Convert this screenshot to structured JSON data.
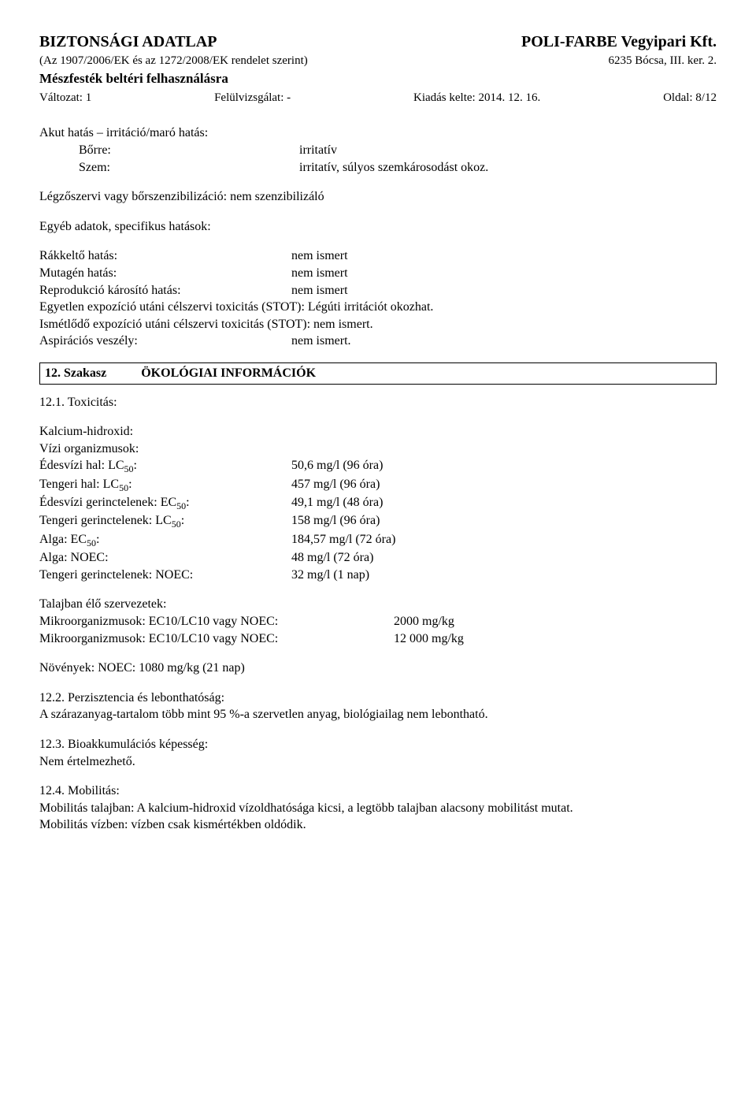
{
  "header": {
    "docTitle": "BIZTONSÁGI ADATLAP",
    "company": "POLI-FARBE Vegyipari Kft.",
    "regulation": "(Az 1907/2006/EK és az 1272/2008/EK rendelet szerint)",
    "address": "6235 Bócsa, III. ker. 2.",
    "product": "Mészfesték beltéri felhasználásra",
    "versionLabel": "Változat: 1",
    "revisionLabel": "Felülvizsgálat: -",
    "issueLabel": "Kiadás kelte: 2014. 12. 16.",
    "pageLabel": "Oldal: 8/12"
  },
  "acute": {
    "heading": "Akut hatás – irritáció/maró hatás:",
    "skinLabel": "Bőrre:",
    "skinVal": "irritatív",
    "eyeLabel": "Szem:",
    "eyeVal": "irritatív, súlyos szemkárosodást okoz."
  },
  "sens": "Légzőszervi vagy bőrszenzibilizáció:  nem szenzibilizáló",
  "other": {
    "heading": "Egyéb adatok, specifikus hatások:",
    "carcLabel": "Rákkeltő hatás:",
    "carcVal": "nem ismert",
    "mutLabel": "Mutagén hatás:",
    "mutVal": "nem ismert",
    "reproLabel": "Reprodukció károsító hatás:",
    "reproVal": "nem ismert",
    "stotSingle": "Egyetlen expozíció utáni célszervi toxicitás (STOT): Légúti irritációt okozhat.",
    "stotRepeat": "Ismétlődő expozíció utáni célszervi toxicitás (STOT): nem ismert.",
    "aspLabel": "Aspirációs veszély:",
    "aspVal": "nem ismert."
  },
  "section12": {
    "num": "12. Szakasz",
    "title": "ÖKOLÓGIAI INFORMÁCIÓK"
  },
  "tox": {
    "heading": "12.1. Toxicitás:",
    "sub1": "Kalcium-hidroxid:",
    "sub2": "Vízi organizmusok:",
    "fwFishL": "Édesvízi hal: LC",
    "fwFishV": "50,6 mg/l  (96 óra)",
    "swFishL": "Tengeri hal: LC",
    "swFishV": "457 mg/l  (96 óra)",
    "fwInvL": "Édesvízi gerinctelenek: EC",
    "fwInvV": "49,1 mg/l  (48 óra)",
    "swInvL": "Tengeri gerinctelenek: LC",
    "swInvV": "158 mg/l  (96 óra)",
    "algaEcL": "Alga: EC",
    "algaEcV": "184,57 mg/l  (72 óra)",
    "algaNoecL": "Alga: NOEC:",
    "algaNoecV": "48 mg/l  (72 óra)",
    "swInvNoecL": "Tengeri gerinctelenek: NOEC:",
    "swInvNoecV": "32 mg/l  (1 nap)",
    "fifty": "50",
    "colon": ":"
  },
  "soil": {
    "heading": "Talajban élő szervezetek:",
    "micro1L": "Mikroorganizmusok: EC10/LC10 vagy NOEC:",
    "micro1V": "2000 mg/kg",
    "micro2L": "Mikroorganizmusok: EC10/LC10 vagy NOEC:",
    "micro2V": "12 000 mg/kg"
  },
  "plants": "Növények: NOEC: 1080 mg/kg (21 nap)",
  "s122": {
    "h": "12.2. Perzisztencia és lebonthatóság:",
    "t": "A szárazanyag-tartalom több mint 95 %-a szervetlen anyag, biológiailag nem lebontható."
  },
  "s123": {
    "h": "12.3. Bioakkumulációs képesség:",
    "t": "Nem értelmezhető."
  },
  "s124": {
    "h": "12.4. Mobilitás:",
    "t1": "Mobilitás talajban: A kalcium-hidroxid vízoldhatósága kicsi, a legtöbb talajban alacsony mobilitást mutat.",
    "t2": "Mobilitás vízben: vízben csak kismértékben oldódik."
  }
}
